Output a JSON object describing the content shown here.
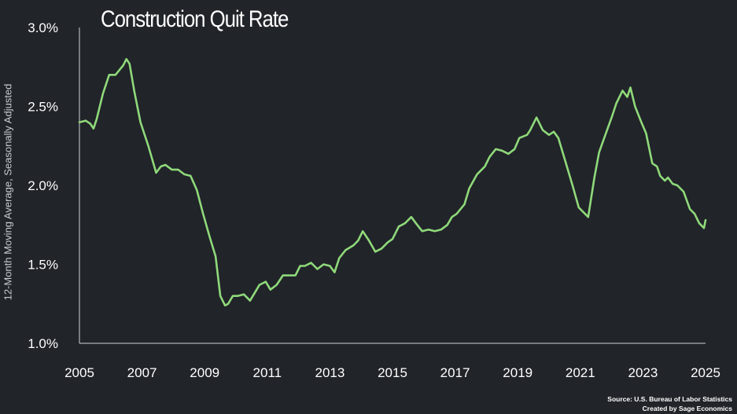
{
  "chart_data": {
    "type": "line",
    "title": "Construction Quit Rate",
    "ylabel": "12-Month Moving Average, Seasonally Adjusted",
    "xlabel": "",
    "xlim": [
      2005.0,
      2025.0
    ],
    "ylim": [
      1.0,
      3.0
    ],
    "yticks": [
      1.0,
      1.5,
      2.0,
      2.5,
      3.0
    ],
    "ytick_labels": [
      "1.0%",
      "1.5%",
      "2.0%",
      "2.5%",
      "3.0%"
    ],
    "xticks": [
      2005,
      2007,
      2009,
      2011,
      2013,
      2015,
      2017,
      2019,
      2021,
      2023,
      2025
    ],
    "xtick_labels": [
      "2005",
      "2007",
      "2009",
      "2011",
      "2013",
      "2015",
      "2017",
      "2019",
      "2021",
      "2023",
      "2025"
    ],
    "grid": false,
    "line_color": "#8fd97a",
    "background": "#212429",
    "series": [
      {
        "x": [
          2005.0,
          2005.2,
          2005.35,
          2005.45,
          2005.55,
          2005.75,
          2005.95,
          2006.15,
          2006.4,
          2006.5,
          2006.6,
          2006.75,
          2006.95,
          2007.2,
          2007.45,
          2007.6,
          2007.75,
          2007.95,
          2008.15,
          2008.35,
          2008.55,
          2008.75,
          2008.95,
          2009.15,
          2009.35,
          2009.5,
          2009.65,
          2009.75,
          2009.9,
          2010.05,
          2010.25,
          2010.45,
          2010.6,
          2010.75,
          2010.95,
          2011.1,
          2011.3,
          2011.5,
          2011.7,
          2011.9,
          2012.05,
          2012.2,
          2012.4,
          2012.6,
          2012.8,
          2013.0,
          2013.15,
          2013.3,
          2013.5,
          2013.75,
          2013.9,
          2014.05,
          2014.25,
          2014.45,
          2014.65,
          2014.85,
          2015.0,
          2015.2,
          2015.4,
          2015.6,
          2015.75,
          2015.95,
          2016.15,
          2016.35,
          2016.55,
          2016.75,
          2016.9,
          2017.05,
          2017.3,
          2017.45,
          2017.7,
          2017.95,
          2018.1,
          2018.3,
          2018.5,
          2018.7,
          2018.9,
          2019.05,
          2019.3,
          2019.4,
          2019.6,
          2019.8,
          2020.0,
          2020.15,
          2020.3,
          2020.45,
          2020.6,
          2020.75,
          2020.95,
          2021.1,
          2021.25,
          2021.45,
          2021.6,
          2021.8,
          2022.0,
          2022.15,
          2022.35,
          2022.5,
          2022.6,
          2022.75,
          2022.95,
          2023.1,
          2023.3,
          2023.45,
          2023.55,
          2023.7,
          2023.8,
          2023.95,
          2024.1,
          2024.3,
          2024.5,
          2024.65,
          2024.8,
          2024.95,
          2025.0
        ],
        "values": [
          2.4,
          2.41,
          2.39,
          2.36,
          2.42,
          2.58,
          2.7,
          2.7,
          2.76,
          2.8,
          2.77,
          2.6,
          2.4,
          2.25,
          2.08,
          2.12,
          2.13,
          2.1,
          2.1,
          2.07,
          2.06,
          1.97,
          1.82,
          1.68,
          1.55,
          1.3,
          1.24,
          1.25,
          1.3,
          1.3,
          1.31,
          1.27,
          1.32,
          1.37,
          1.39,
          1.34,
          1.37,
          1.43,
          1.43,
          1.43,
          1.49,
          1.49,
          1.51,
          1.47,
          1.5,
          1.49,
          1.45,
          1.54,
          1.59,
          1.62,
          1.65,
          1.71,
          1.65,
          1.58,
          1.6,
          1.64,
          1.66,
          1.74,
          1.76,
          1.8,
          1.76,
          1.71,
          1.72,
          1.71,
          1.72,
          1.75,
          1.8,
          1.82,
          1.88,
          1.98,
          2.07,
          2.12,
          2.18,
          2.23,
          2.22,
          2.2,
          2.23,
          2.3,
          2.32,
          2.35,
          2.43,
          2.35,
          2.32,
          2.34,
          2.3,
          2.2,
          2.1,
          2.0,
          1.86,
          1.83,
          1.8,
          2.05,
          2.21,
          2.32,
          2.43,
          2.52,
          2.6,
          2.56,
          2.62,
          2.5,
          2.4,
          2.33,
          2.14,
          2.12,
          2.06,
          2.03,
          2.05,
          2.01,
          2.0,
          1.96,
          1.85,
          1.82,
          1.76,
          1.73,
          1.78
        ]
      }
    ]
  },
  "source": {
    "line1": "Source: U.S. Bureau of Labor Statistics",
    "line2": "Created by Sage Economics"
  }
}
